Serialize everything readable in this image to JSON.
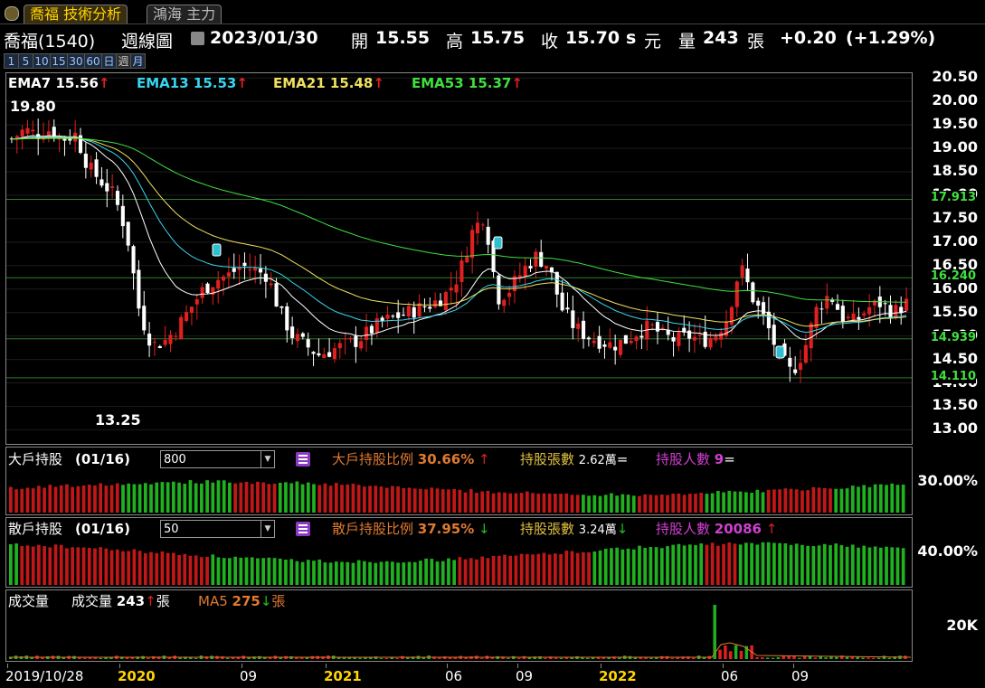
{
  "tabs": [
    {
      "label": "喬福 技術分析",
      "active": true
    },
    {
      "label": "鴻海 主力",
      "active": false
    }
  ],
  "header": {
    "stock": "喬福(1540)",
    "chart_kind": "週線圖",
    "date": "2023/01/30",
    "open_label": "開",
    "open": "15.55",
    "high_label": "高",
    "high": "15.75",
    "close_label": "收",
    "close": "15.70",
    "close_flag": "s",
    "currency": "元",
    "vol_label": "量",
    "vol": "243",
    "vol_unit": "張",
    "change": "+0.20",
    "change_pct": "(+1.29%)"
  },
  "periods": [
    "1",
    "5",
    "10",
    "15",
    "30",
    "60",
    "日",
    "週",
    "月"
  ],
  "active_period": "週",
  "price_panel": {
    "ema": [
      {
        "name": "EMA7",
        "value": "15.56",
        "color": "#ffffff"
      },
      {
        "name": "EMA13",
        "value": "15.53",
        "color": "#38d6f0"
      },
      {
        "name": "EMA21",
        "value": "15.48",
        "color": "#f0e060"
      },
      {
        "name": "EMA53",
        "value": "15.37",
        "color": "#40e040"
      }
    ],
    "high_label": "19.80",
    "low_label": "13.25",
    "y_ticks": [
      "20.50",
      "20.00",
      "19.50",
      "19.00",
      "18.50",
      "18.00",
      "17.50",
      "17.00",
      "16.50",
      "16.00",
      "15.50",
      "15.00",
      "14.50",
      "14.00",
      "13.50",
      "13.00"
    ],
    "levels": [
      {
        "label": "17.913",
        "value": 17.913
      },
      {
        "label": "16.240",
        "value": 16.24
      },
      {
        "label": "14.939",
        "value": 14.939
      },
      {
        "label": "14.110",
        "value": 14.11
      }
    ]
  },
  "big_holder_panel": {
    "title": "大戶持股",
    "date": "(01/16)",
    "select_value": "800",
    "ratio_label": "大戶持股比例",
    "ratio": "30.66%",
    "sheets_label": "持股張數",
    "sheets": "2.62萬",
    "sheets_sign": "=",
    "holders_label": "持股人數",
    "holders": "9",
    "holders_sign": "=",
    "axis_label": "30.00%"
  },
  "retail_panel": {
    "title": "散戶持股",
    "date": "(01/16)",
    "select_value": "50",
    "ratio_label": "散戶持股比例",
    "ratio": "37.95%",
    "sheets_label": "持股張數",
    "sheets": "3.24萬",
    "holders_label": "持股人數",
    "holders": "20086",
    "axis_label": "40.00%"
  },
  "volume_panel": {
    "title": "成交量",
    "vol_label": "成交量",
    "vol": "243",
    "vol_unit": "張",
    "ma_label": "MA5",
    "ma": "275",
    "ma_unit": "張",
    "axis_label": "20K"
  },
  "x_axis": [
    "2019/10/28",
    "2020",
    "09",
    "2021",
    "06",
    "09",
    "2022",
    "06",
    "09"
  ],
  "chart_data": {
    "type": "candlestick",
    "x": [
      "2019/10/28",
      "2020",
      "09",
      "2021",
      "06",
      "09",
      "2022",
      "06",
      "09"
    ],
    "ylim": [
      12.7,
      20.6
    ],
    "high": 19.8,
    "low": 13.25,
    "close_path": [
      19.2,
      19.4,
      19.3,
      19.4,
      19.2,
      19.3,
      18.6,
      18.3,
      18.0,
      17.2,
      15.5,
      14.8,
      14.9,
      15.2,
      15.6,
      16.0,
      16.2,
      16.3,
      16.5,
      16.4,
      16.3,
      15.5,
      15.0,
      14.8,
      14.6,
      14.7,
      14.8,
      14.9,
      15.1,
      15.3,
      15.4,
      15.5,
      15.6,
      15.7,
      15.9,
      16.3,
      17.2,
      17.6,
      15.8,
      16.0,
      16.4,
      16.7,
      16.5,
      15.6,
      15.2,
      15.0,
      14.9,
      14.8,
      14.9,
      15.1,
      15.2,
      15.0,
      14.9,
      15.0,
      14.9,
      15.0,
      15.4,
      16.5,
      15.8,
      15.3,
      14.6,
      14.2,
      14.7,
      15.6,
      15.9,
      15.4,
      15.3,
      15.6,
      15.7,
      15.5,
      15.7
    ],
    "ema_series": [
      {
        "name": "EMA7",
        "value": 15.56
      },
      {
        "name": "EMA13",
        "value": 15.53
      },
      {
        "name": "EMA21",
        "value": 15.48
      },
      {
        "name": "EMA53",
        "value": 15.37
      }
    ]
  },
  "colors": {
    "up": "#e02020",
    "down": "#ffffff",
    "green_bar": "#20b020",
    "red_bar": "#c01818",
    "grid": "#2a2a2a"
  }
}
